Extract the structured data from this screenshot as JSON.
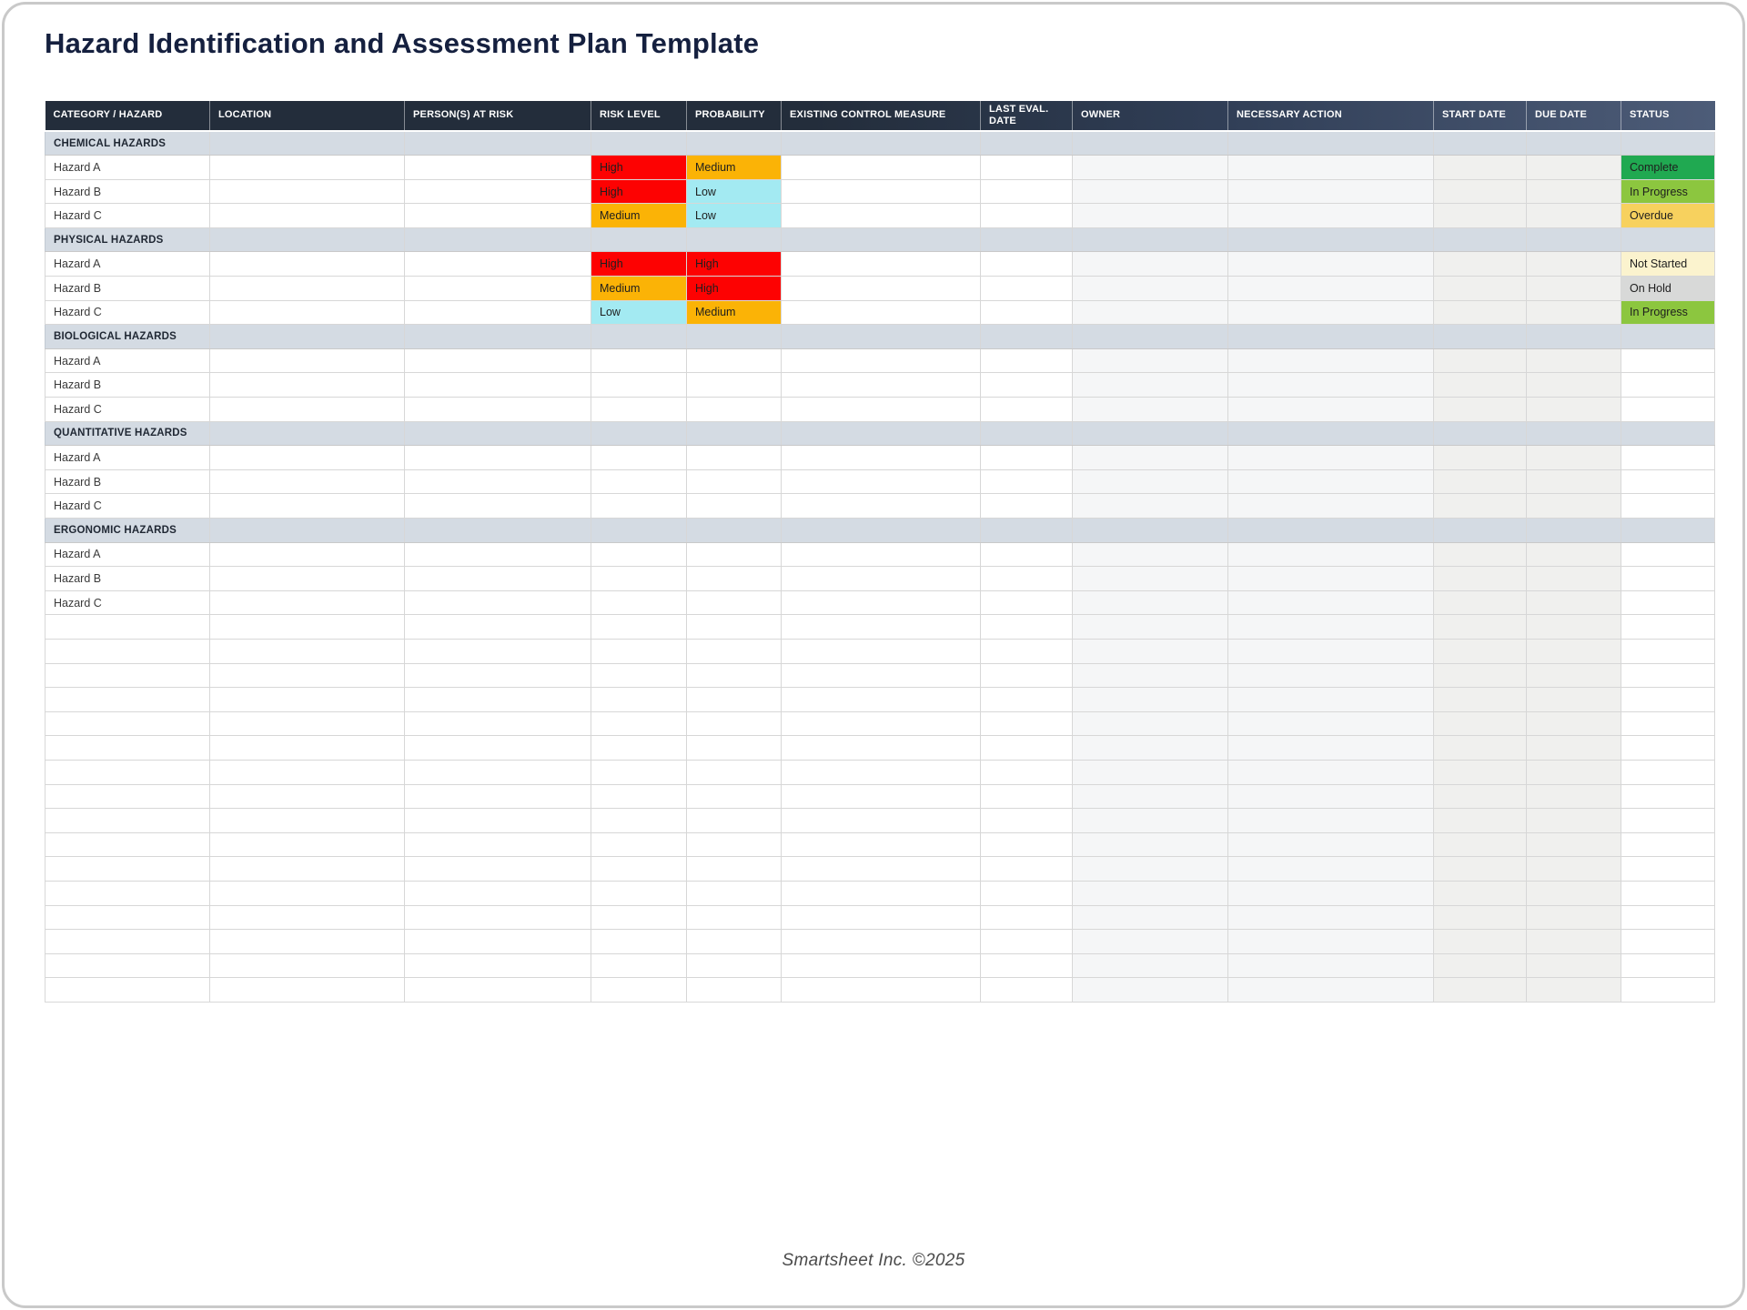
{
  "page": {
    "title": "Hazard Identification and Assessment Plan Template",
    "footer": "Smartsheet Inc. ©2025"
  },
  "table": {
    "columns": [
      {
        "key": "category",
        "label": "CATEGORY / HAZARD"
      },
      {
        "key": "location",
        "label": "LOCATION"
      },
      {
        "key": "persons",
        "label": "PERSON(S) AT RISK"
      },
      {
        "key": "risk",
        "label": "RISK LEVEL"
      },
      {
        "key": "probability",
        "label": "PROBABILITY"
      },
      {
        "key": "control",
        "label": "EXISTING CONTROL MEASURE"
      },
      {
        "key": "last_eval",
        "label": "LAST EVAL. DATE"
      },
      {
        "key": "owner",
        "label": "OWNER"
      },
      {
        "key": "action",
        "label": "NECESSARY ACTION"
      },
      {
        "key": "start",
        "label": "START DATE"
      },
      {
        "key": "due",
        "label": "DUE DATE"
      },
      {
        "key": "status",
        "label": "STATUS"
      }
    ],
    "sections": [
      {
        "name": "CHEMICAL HAZARDS",
        "rows": [
          {
            "hazard": "Hazard A",
            "risk": "High",
            "probability": "Medium",
            "status": "Complete"
          },
          {
            "hazard": "Hazard B",
            "risk": "High",
            "probability": "Low",
            "status": "In Progress"
          },
          {
            "hazard": "Hazard C",
            "risk": "Medium",
            "probability": "Low",
            "status": "Overdue"
          }
        ]
      },
      {
        "name": "PHYSICAL HAZARDS",
        "rows": [
          {
            "hazard": "Hazard A",
            "risk": "High",
            "probability": "High",
            "status": "Not Started"
          },
          {
            "hazard": "Hazard B",
            "risk": "Medium",
            "probability": "High",
            "status": "On Hold"
          },
          {
            "hazard": "Hazard C",
            "risk": "Low",
            "probability": "Medium",
            "status": "In Progress"
          }
        ]
      },
      {
        "name": "BIOLOGICAL HAZARDS",
        "rows": [
          {
            "hazard": "Hazard A"
          },
          {
            "hazard": "Hazard B"
          },
          {
            "hazard": "Hazard C"
          }
        ]
      },
      {
        "name": "QUANTITATIVE HAZARDS",
        "rows": [
          {
            "hazard": "Hazard A"
          },
          {
            "hazard": "Hazard B"
          },
          {
            "hazard": "Hazard C"
          }
        ]
      },
      {
        "name": "ERGONOMIC HAZARDS",
        "rows": [
          {
            "hazard": "Hazard A"
          },
          {
            "hazard": "Hazard B"
          },
          {
            "hazard": "Hazard C"
          }
        ]
      }
    ],
    "empty_row_count": 16,
    "level_colors": {
      "High": "#FD0202",
      "Medium": "#FBB306",
      "Low": "#A3EAF2"
    },
    "status_colors": {
      "Complete": "#20A951",
      "In Progress": "#8CC63F",
      "Overdue": "#F7D15E",
      "Not Started": "#FBF3CE",
      "On Hold": "#D8D9D8"
    }
  }
}
